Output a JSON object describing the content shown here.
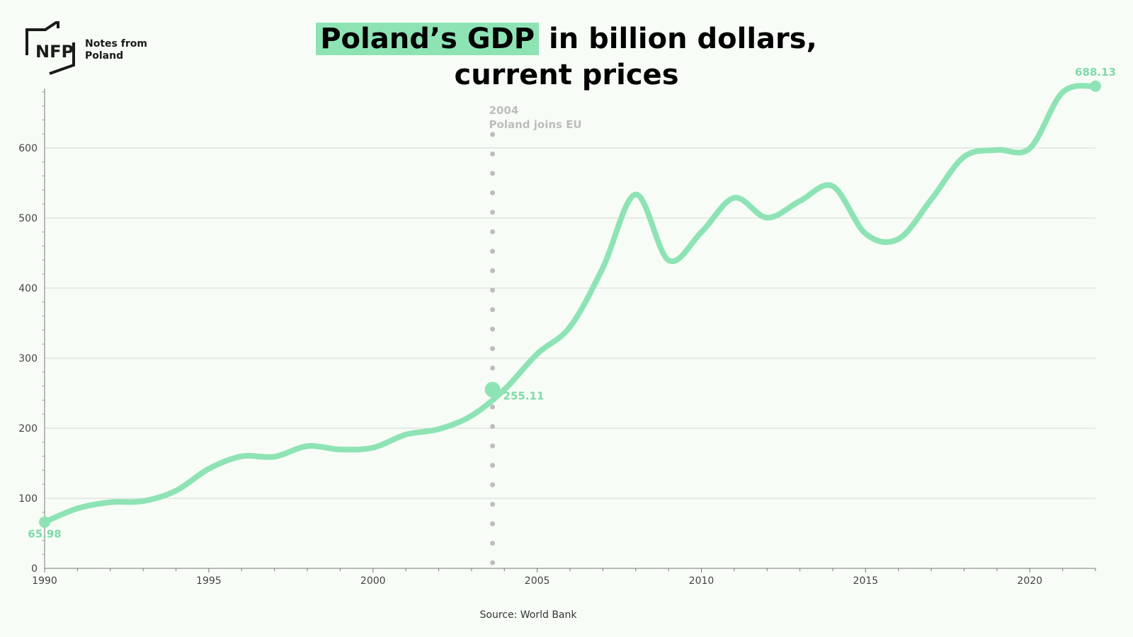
{
  "branding": {
    "line1": "Notes from",
    "line2": "Poland",
    "mark": "NFP"
  },
  "title": {
    "highlight": "Poland’s GDP",
    "rest": " in billion dollars,",
    "line2": "current prices"
  },
  "source": "Source: World Bank",
  "colors": {
    "line": "#8ee3b5",
    "label": "#7fd9a9",
    "grid": "#d6d6d6",
    "axis": "#777777",
    "event": "#bdbdbd",
    "background": "#f7fdf6"
  },
  "chart_data": {
    "type": "line",
    "title": "Poland’s GDP in billion dollars, current prices",
    "xlabel": "",
    "ylabel": "",
    "xlim": [
      1990,
      2022
    ],
    "ylim": [
      0,
      688.13
    ],
    "x_ticks": [
      1990,
      1995,
      2000,
      2005,
      2010,
      2015,
      2020
    ],
    "y_ticks": [
      0,
      100,
      200,
      300,
      400,
      500,
      600
    ],
    "grid": true,
    "series": [
      {
        "name": "GDP (billion USD, current prices)",
        "x": [
          1990,
          1991,
          1992,
          1993,
          1994,
          1995,
          1996,
          1997,
          1998,
          1999,
          2000,
          2001,
          2002,
          2003,
          2004,
          2005,
          2006,
          2007,
          2008,
          2009,
          2010,
          2011,
          2012,
          2013,
          2014,
          2015,
          2016,
          2017,
          2018,
          2019,
          2020,
          2021,
          2022
        ],
        "values": [
          65.98,
          85.5,
          94.3,
          96.0,
          110.8,
          142.1,
          159.9,
          159.3,
          174.4,
          169.7,
          172.2,
          190.9,
          198.7,
          217.8,
          255.11,
          306.1,
          344.7,
          429.0,
          533.6,
          439.7,
          479.8,
          528.8,
          500.4,
          524.2,
          545.3,
          477.6,
          470.0,
          526.5,
          587.4,
          597.2,
          599.4,
          679.4,
          688.13
        ]
      }
    ],
    "annotations": [
      {
        "x": 1990,
        "value": 65.98,
        "label": "65.98"
      },
      {
        "x": 2003.64,
        "value": 255.11,
        "label": "255.11"
      },
      {
        "x": 2022,
        "value": 688.13,
        "label": "688.13"
      }
    ],
    "event": {
      "x": 2003.64,
      "year": "2004",
      "text": "Poland joins EU"
    }
  }
}
